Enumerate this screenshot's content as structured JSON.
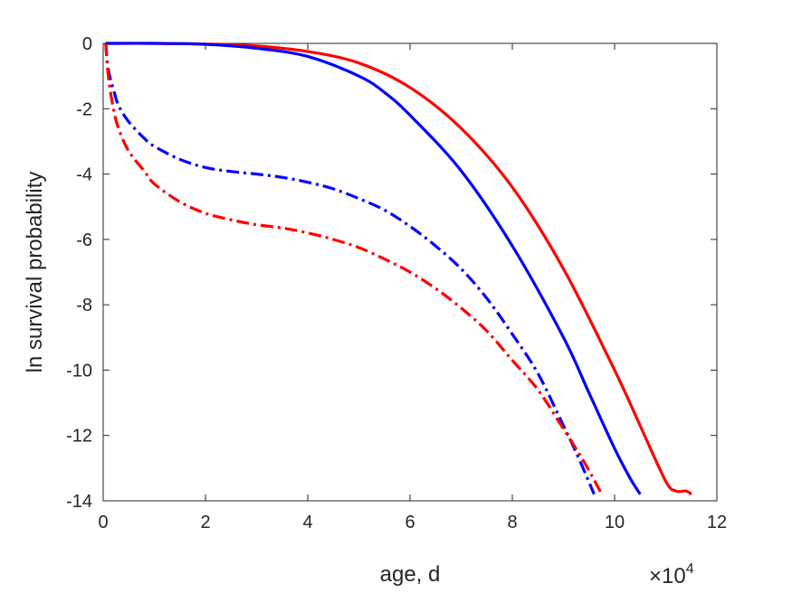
{
  "chart_data": {
    "type": "line",
    "title": "",
    "xlabel": "age, d",
    "ylabel": "ln survival probability",
    "x_exponent_base": "×10",
    "x_exponent_power": "4",
    "xlim": [
      0,
      12
    ],
    "ylim": [
      -14,
      0
    ],
    "x_ticks": [
      0,
      2,
      4,
      6,
      8,
      10,
      12
    ],
    "y_ticks": [
      0,
      -2,
      -4,
      -6,
      -8,
      -10,
      -12,
      -14
    ],
    "grid": false,
    "legend": "none",
    "series": [
      {
        "color": "#ff0000",
        "style": "solid",
        "x": [
          0.05,
          1,
          2,
          3,
          4,
          5,
          6,
          7,
          8,
          9,
          10,
          10.5,
          11,
          11.2,
          11.4,
          11.5
        ],
        "y": [
          0,
          0,
          -0.02,
          -0.08,
          -0.25,
          -0.6,
          -1.35,
          -2.6,
          -4.4,
          -6.9,
          -10.0,
          -11.7,
          -13.4,
          -13.7,
          -13.7,
          -13.8
        ]
      },
      {
        "color": "#0000ff",
        "style": "solid",
        "x": [
          0.05,
          1,
          2,
          3,
          4,
          5,
          5.5,
          6,
          7,
          8,
          9,
          9.5,
          10,
          10.3,
          10.5
        ],
        "y": [
          0,
          0,
          -0.03,
          -0.15,
          -0.4,
          -1.0,
          -1.5,
          -2.2,
          -3.9,
          -6.2,
          -9.0,
          -10.7,
          -12.4,
          -13.3,
          -13.8
        ]
      },
      {
        "color": "#0000ff",
        "style": "dashdot",
        "x": [
          0.05,
          0.1,
          0.2,
          0.3,
          0.5,
          0.8,
          1,
          1.5,
          2,
          2.5,
          3,
          3.5,
          4,
          4.5,
          5,
          5.5,
          6,
          6.5,
          7,
          7.5,
          8,
          8.5,
          9,
          9.3,
          9.6
        ],
        "y": [
          0,
          -0.8,
          -1.4,
          -1.9,
          -2.4,
          -2.9,
          -3.15,
          -3.55,
          -3.8,
          -3.92,
          -4.0,
          -4.1,
          -4.25,
          -4.45,
          -4.75,
          -5.1,
          -5.6,
          -6.2,
          -6.9,
          -7.8,
          -8.9,
          -10.1,
          -11.7,
          -12.7,
          -13.8
        ]
      },
      {
        "color": "#ff0000",
        "style": "dashdot",
        "x": [
          0.05,
          0.1,
          0.2,
          0.3,
          0.5,
          0.8,
          1,
          1.5,
          2,
          2.5,
          3,
          3.5,
          4,
          4.5,
          5,
          5.5,
          6,
          6.5,
          7,
          7.5,
          8,
          8.5,
          9,
          9.4,
          9.75
        ],
        "y": [
          0,
          -1.0,
          -2.0,
          -2.6,
          -3.3,
          -3.9,
          -4.3,
          -4.85,
          -5.2,
          -5.4,
          -5.55,
          -5.65,
          -5.8,
          -6.0,
          -6.25,
          -6.6,
          -7.0,
          -7.5,
          -8.1,
          -8.8,
          -9.7,
          -10.6,
          -11.8,
          -12.8,
          -13.8
        ]
      }
    ]
  }
}
